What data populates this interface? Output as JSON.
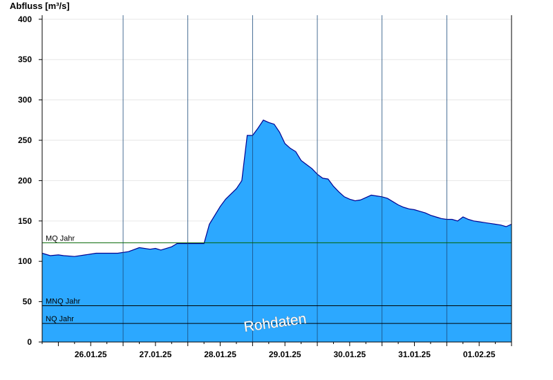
{
  "chart_data": {
    "type": "area",
    "ylabel": "Abfluss [m³/s]",
    "ylim": [
      0,
      405
    ],
    "yticks": [
      0,
      50,
      100,
      150,
      200,
      250,
      300,
      350,
      400
    ],
    "grid": true,
    "x_range": [
      "25.01.25 18:00",
      "01.02.25 24:00"
    ],
    "xtick_labels": [
      "26.01.25",
      "27.01.25",
      "28.01.25",
      "29.01.25",
      "30.01.25",
      "31.01.25",
      "01.02.25"
    ],
    "fill_color": "#2ca8ff",
    "line_color": "#000090",
    "x_hours": [
      0,
      3,
      6,
      8,
      12,
      16,
      20,
      24,
      28,
      32,
      36,
      40,
      42,
      44,
      48,
      50,
      54,
      60,
      62,
      66,
      68,
      72,
      74,
      76,
      78,
      80,
      82,
      84,
      86,
      88,
      90,
      92,
      94,
      96,
      98,
      100,
      102,
      104,
      106,
      108,
      110,
      112,
      114,
      116,
      118,
      120,
      122,
      124,
      126,
      128,
      130,
      132,
      134,
      136,
      138,
      140,
      142,
      144,
      146,
      148,
      150,
      152,
      154,
      156,
      158,
      160,
      162,
      164,
      166,
      168,
      170,
      172,
      174
    ],
    "y_values": [
      110,
      107,
      108,
      107,
      106,
      108,
      110,
      110,
      110,
      112,
      117,
      115,
      116,
      114,
      118,
      122,
      122,
      122,
      146,
      168,
      177,
      190,
      200,
      256,
      256,
      265,
      275,
      272,
      270,
      260,
      246,
      240,
      236,
      225,
      220,
      215,
      208,
      203,
      202,
      193,
      186,
      180,
      177,
      175,
      176,
      179,
      182,
      181,
      180,
      178,
      174,
      170,
      167,
      165,
      164,
      162,
      160,
      157,
      155,
      153,
      152,
      152,
      150,
      155,
      152,
      150,
      149,
      148,
      147,
      146,
      145,
      143,
      146
    ],
    "reference_lines": [
      {
        "label": "MQ Jahr",
        "value": 123,
        "color": "#006400"
      },
      {
        "label": "MNQ Jahr",
        "value": 45,
        "color": "#000000"
      },
      {
        "label": "NQ Jahr",
        "value": 23,
        "color": "#000000"
      }
    ],
    "watermark": "Rohdaten"
  }
}
